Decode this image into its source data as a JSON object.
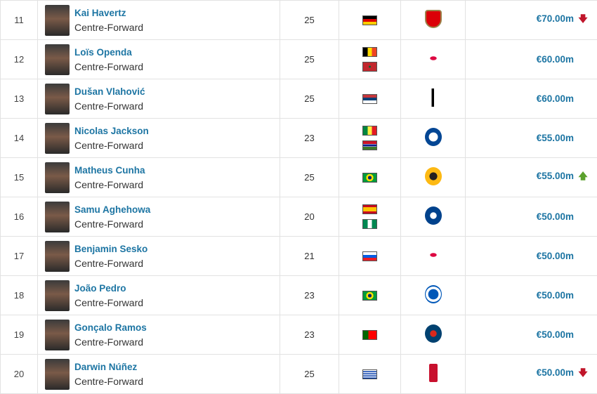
{
  "colors": {
    "link": "#1d75a3",
    "down": "#c0152a",
    "up": "#5ba12d"
  },
  "rows": [
    {
      "rank": "11",
      "name": "Kai Havertz",
      "position": "Centre-Forward",
      "age": "25",
      "flags": [
        "germany"
      ],
      "club": "arsenal",
      "value": "€70.00m",
      "trend": "down"
    },
    {
      "rank": "12",
      "name": "Loïs Openda",
      "position": "Centre-Forward",
      "age": "25",
      "flags": [
        "belgium",
        "morocco"
      ],
      "club": "rb-leipzig",
      "value": "€60.00m",
      "trend": ""
    },
    {
      "rank": "13",
      "name": "Dušan Vlahović",
      "position": "Centre-Forward",
      "age": "25",
      "flags": [
        "serbia"
      ],
      "club": "juventus",
      "value": "€60.00m",
      "trend": ""
    },
    {
      "rank": "14",
      "name": "Nicolas Jackson",
      "position": "Centre-Forward",
      "age": "23",
      "flags": [
        "senegal",
        "gambia"
      ],
      "club": "chelsea",
      "value": "€55.00m",
      "trend": ""
    },
    {
      "rank": "15",
      "name": "Matheus Cunha",
      "position": "Centre-Forward",
      "age": "25",
      "flags": [
        "brazil"
      ],
      "club": "wolves",
      "value": "€55.00m",
      "trend": "up"
    },
    {
      "rank": "16",
      "name": "Samu Aghehowa",
      "position": "Centre-Forward",
      "age": "20",
      "flags": [
        "spain",
        "nigeria"
      ],
      "club": "porto",
      "value": "€50.00m",
      "trend": ""
    },
    {
      "rank": "17",
      "name": "Benjamin Sesko",
      "position": "Centre-Forward",
      "age": "21",
      "flags": [
        "slovenia"
      ],
      "club": "rb-leipzig",
      "value": "€50.00m",
      "trend": ""
    },
    {
      "rank": "18",
      "name": "João Pedro",
      "position": "Centre-Forward",
      "age": "23",
      "flags": [
        "brazil"
      ],
      "club": "brighton",
      "value": "€50.00m",
      "trend": ""
    },
    {
      "rank": "19",
      "name": "Gonçalo Ramos",
      "position": "Centre-Forward",
      "age": "23",
      "flags": [
        "portugal"
      ],
      "club": "psg",
      "value": "€50.00m",
      "trend": ""
    },
    {
      "rank": "20",
      "name": "Darwin Núñez",
      "position": "Centre-Forward",
      "age": "25",
      "flags": [
        "uruguay"
      ],
      "club": "liverpool",
      "value": "€50.00m",
      "trend": "down"
    }
  ]
}
